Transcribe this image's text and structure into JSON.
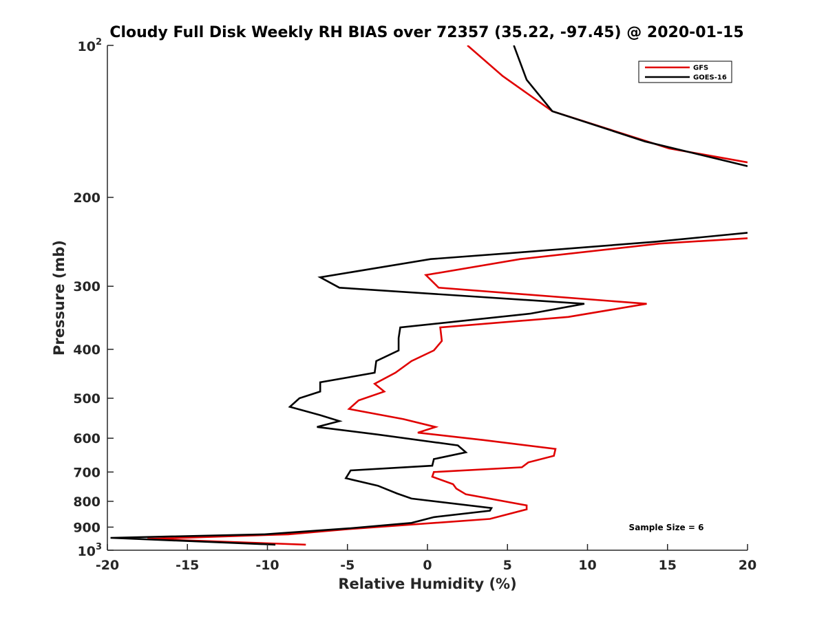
{
  "chart_data": {
    "type": "line",
    "title": "Cloudy Full Disk Weekly RH BIAS over 72357 (35.22, -97.45) @ 2020-01-15",
    "xlabel": "Relative Humidity (%)",
    "ylabel": "Pressure (mb)",
    "xlim": [
      -20,
      20
    ],
    "ylim": [
      100,
      1000
    ],
    "yscale": "log",
    "y_reversed": true,
    "grid": false,
    "legend_position": "top-right",
    "x_ticks": [
      -20,
      -15,
      -10,
      -5,
      0,
      5,
      10,
      15,
      20
    ],
    "y_ticks": [
      {
        "value": 100,
        "label": "10",
        "sup": "2"
      },
      {
        "value": 200,
        "label": "200"
      },
      {
        "value": 300,
        "label": "300"
      },
      {
        "value": 400,
        "label": "400"
      },
      {
        "value": 500,
        "label": "500"
      },
      {
        "value": 600,
        "label": "600"
      },
      {
        "value": 700,
        "label": "700"
      },
      {
        "value": 800,
        "label": "800"
      },
      {
        "value": 900,
        "label": "900"
      },
      {
        "value": 1000,
        "label": "10",
        "sup": "3"
      }
    ],
    "annotation": "Sample Size = 6",
    "series": [
      {
        "name": "GFS",
        "color": "#e00000",
        "segments": [
          [
            [
              2.5,
              100
            ],
            [
              4.7,
              115
            ],
            [
              7.8,
              135
            ],
            [
              15.1,
              160
            ],
            [
              20,
              170.5
            ]
          ],
          [
            [
              20,
              241
            ],
            [
              14.5,
              247
            ],
            [
              5.8,
              265
            ],
            [
              -0.1,
              285
            ],
            [
              0.7,
              302
            ],
            [
              13.7,
              325
            ],
            [
              8.8,
              345
            ],
            [
              0.8,
              362
            ],
            [
              0.9,
              385
            ],
            [
              0.4,
              402
            ],
            [
              -1.0,
              422
            ],
            [
              -2.0,
              445
            ],
            [
              -3.3,
              468
            ],
            [
              -2.7,
              485
            ],
            [
              -4.3,
              505
            ],
            [
              -4.9,
              525
            ],
            [
              -1.5,
              550
            ],
            [
              0.5,
              570
            ],
            [
              -0.6,
              585
            ],
            [
              3.5,
              605
            ],
            [
              8.0,
              630
            ],
            [
              7.9,
              650
            ],
            [
              6.3,
              670
            ],
            [
              5.9,
              685
            ],
            [
              0.4,
              700
            ],
            [
              0.3,
              715
            ],
            [
              1.6,
              740
            ],
            [
              1.8,
              755
            ],
            [
              2.4,
              775
            ],
            [
              6.2,
              815
            ],
            [
              6.2,
              830
            ],
            [
              3.9,
              867
            ],
            [
              -4.9,
              908
            ],
            [
              -8.7,
              930
            ],
            [
              -17.5,
              950
            ],
            [
              -7.6,
              975
            ]
          ]
        ]
      },
      {
        "name": "GOES-16",
        "color": "#000000",
        "segments": [
          [
            [
              5.4,
              100
            ],
            [
              6.2,
              117
            ],
            [
              7.8,
              135
            ],
            [
              13.6,
              155
            ],
            [
              20,
              173.5
            ]
          ],
          [
            [
              20,
              235
            ],
            [
              14.2,
              245
            ],
            [
              5.8,
              257
            ],
            [
              0.2,
              265
            ],
            [
              -6.7,
              288
            ],
            [
              -5.5,
              302
            ],
            [
              9.8,
              325
            ],
            [
              6.4,
              340
            ],
            [
              -1.7,
              362
            ],
            [
              -1.8,
              380
            ],
            [
              -1.8,
              402
            ],
            [
              -3.2,
              422
            ],
            [
              -3.3,
              445
            ],
            [
              -6.7,
              465
            ],
            [
              -6.7,
              485
            ],
            [
              -8.0,
              500
            ],
            [
              -8.6,
              520
            ],
            [
              -6.7,
              540
            ],
            [
              -5.5,
              555
            ],
            [
              -6.9,
              570
            ],
            [
              -3.1,
              590
            ],
            [
              1.9,
              620
            ],
            [
              2.4,
              640
            ],
            [
              0.4,
              660
            ],
            [
              0.3,
              680
            ],
            [
              -4.8,
              695
            ],
            [
              -5.1,
              720
            ],
            [
              -3.1,
              745
            ],
            [
              -1.9,
              772
            ],
            [
              -1.0,
              790
            ],
            [
              4.0,
              825
            ],
            [
              3.9,
              835
            ],
            [
              0.4,
              860
            ],
            [
              -1.0,
              883
            ],
            [
              -4.9,
              905
            ],
            [
              -10.2,
              930
            ],
            [
              -19.8,
              945
            ],
            [
              -9.5,
              975
            ]
          ]
        ]
      }
    ]
  }
}
